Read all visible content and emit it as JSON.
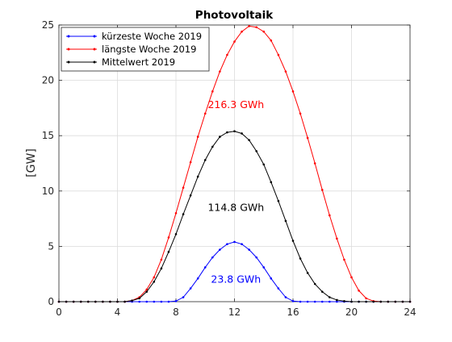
{
  "chart_data": {
    "type": "line",
    "title": "Photovoltaik",
    "xlabel": "",
    "ylabel": "[GW]",
    "xlim": [
      0,
      24
    ],
    "ylim": [
      0,
      25
    ],
    "xticks": [
      0,
      4,
      8,
      12,
      16,
      20,
      24
    ],
    "yticks": [
      0,
      5,
      10,
      15,
      20,
      25
    ],
    "grid": true,
    "legend_position": "top-left",
    "series": [
      {
        "name": "kürzeste Woche 2019",
        "color": "#0000ff",
        "marker": "dot",
        "peak": 5.4,
        "x": [
          0,
          0.5,
          1,
          1.5,
          2,
          2.5,
          3,
          3.5,
          4,
          4.5,
          5,
          5.5,
          6,
          6.5,
          7,
          7.5,
          8,
          8.5,
          9,
          9.5,
          10,
          10.5,
          11,
          11.5,
          12,
          12.5,
          13,
          13.5,
          14,
          14.5,
          15,
          15.5,
          16,
          16.5,
          17,
          17.5,
          18,
          18.5,
          19,
          19.5,
          20,
          20.5,
          21,
          21.5,
          22,
          22.5,
          23,
          23.5,
          24
        ],
        "values": [
          0,
          0,
          0,
          0,
          0,
          0,
          0,
          0,
          0,
          0,
          0,
          0,
          0,
          0,
          0,
          0,
          0.05,
          0.4,
          1.2,
          2.1,
          3.1,
          4.0,
          4.7,
          5.2,
          5.4,
          5.2,
          4.7,
          4.0,
          3.1,
          2.1,
          1.2,
          0.4,
          0.05,
          0,
          0,
          0,
          0,
          0,
          0,
          0,
          0,
          0,
          0,
          0,
          0,
          0,
          0,
          0,
          0
        ]
      },
      {
        "name": "längste Woche 2019",
        "color": "#ff0000",
        "marker": "dot",
        "peak": 24.9,
        "x": [
          0,
          0.5,
          1,
          1.5,
          2,
          2.5,
          3,
          3.5,
          4,
          4.5,
          5,
          5.5,
          6,
          6.5,
          7,
          7.5,
          8,
          8.5,
          9,
          9.5,
          10,
          10.5,
          11,
          11.5,
          12,
          12.5,
          13,
          13.5,
          14,
          14.5,
          15,
          15.5,
          16,
          16.5,
          17,
          17.5,
          18,
          18.5,
          19,
          19.5,
          20,
          20.5,
          21,
          21.5,
          22,
          22.5,
          23,
          23.5,
          24
        ],
        "values": [
          0,
          0,
          0,
          0,
          0,
          0,
          0,
          0,
          0,
          0,
          0.1,
          0.4,
          1.1,
          2.2,
          3.8,
          5.8,
          8.0,
          10.3,
          12.6,
          14.9,
          17.0,
          19.0,
          20.8,
          22.3,
          23.5,
          24.4,
          24.9,
          24.8,
          24.4,
          23.6,
          22.3,
          20.8,
          19.0,
          17.0,
          14.8,
          12.5,
          10.1,
          7.8,
          5.7,
          3.8,
          2.2,
          1.0,
          0.3,
          0.05,
          0,
          0,
          0,
          0,
          0
        ]
      },
      {
        "name": "Mittelwert 2019",
        "color": "#000000",
        "marker": "dot",
        "peak": 15.4,
        "x": [
          0,
          0.5,
          1,
          1.5,
          2,
          2.5,
          3,
          3.5,
          4,
          4.5,
          5,
          5.5,
          6,
          6.5,
          7,
          7.5,
          8,
          8.5,
          9,
          9.5,
          10,
          10.5,
          11,
          11.5,
          12,
          12.5,
          13,
          13.5,
          14,
          14.5,
          15,
          15.5,
          16,
          16.5,
          17,
          17.5,
          18,
          18.5,
          19,
          19.5,
          20,
          20.5,
          21,
          21.5,
          22,
          22.5,
          23,
          23.5,
          24
        ],
        "values": [
          0,
          0,
          0,
          0,
          0,
          0,
          0,
          0,
          0,
          0,
          0.1,
          0.3,
          0.9,
          1.8,
          3.0,
          4.5,
          6.1,
          7.9,
          9.6,
          11.3,
          12.8,
          14.0,
          14.9,
          15.3,
          15.4,
          15.2,
          14.6,
          13.6,
          12.4,
          10.8,
          9.1,
          7.3,
          5.5,
          3.9,
          2.6,
          1.6,
          0.9,
          0.4,
          0.15,
          0.05,
          0,
          0,
          0,
          0,
          0,
          0,
          0,
          0,
          0
        ]
      }
    ],
    "annotations": [
      {
        "text": "216.3 GWh",
        "x": 12.1,
        "y": 17.8,
        "color": "#ff0000"
      },
      {
        "text": "114.8 GWh",
        "x": 12.1,
        "y": 8.5,
        "color": "#000000"
      },
      {
        "text": "23.8 GWh",
        "x": 12.1,
        "y": 2.0,
        "color": "#0000ff"
      }
    ]
  }
}
